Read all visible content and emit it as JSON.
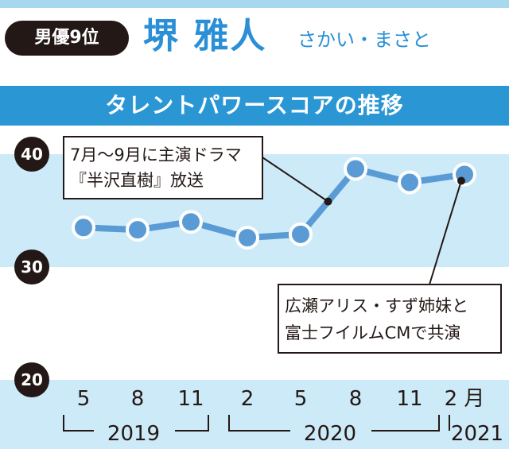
{
  "header": {
    "rank_badge": "男優9位",
    "name": "堺 雅人",
    "reading": "さかい・まさと",
    "chart_title": "タレントパワースコアの推移"
  },
  "colors": {
    "band": "#cdeaf8",
    "line": "#5b9bd5",
    "marker": "#5b9bd5",
    "title_bar": "#2a96d4",
    "name": "#2a8fd6",
    "badge": "#231815"
  },
  "chart_data": {
    "type": "line",
    "title": "タレントパワースコアの推移",
    "x": [
      "2019-05",
      "2019-08",
      "2019-11",
      "2020-02",
      "2020-05",
      "2020-08",
      "2020-11",
      "2021-02"
    ],
    "x_tick_labels": [
      "5",
      "8",
      "11",
      "2",
      "5",
      "8",
      "11",
      "2 月"
    ],
    "x_group_labels": [
      "2019",
      "2020",
      "2021"
    ],
    "series": [
      {
        "values": [
          33.5,
          33.3,
          34.0,
          32.6,
          32.9,
          38.7,
          37.5,
          38.2
        ]
      }
    ],
    "y_ticks": [
      40,
      30,
      20
    ],
    "ylim": [
      20,
      41.5
    ],
    "xlabel": "",
    "ylabel": "",
    "grid": false,
    "annotations": [
      {
        "text_lines": [
          "7月〜9月に主演ドラマ",
          "『半沢直樹』放送"
        ],
        "point_index": 4.5
      },
      {
        "text_lines": [
          "広瀬アリス・すず姉妹と",
          "富士フイルムCMで共演"
        ],
        "point_index": 7
      }
    ]
  }
}
